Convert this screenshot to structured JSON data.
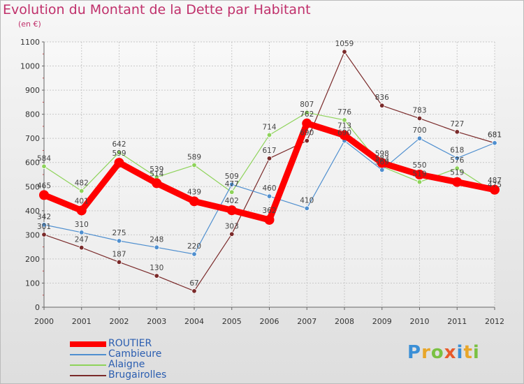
{
  "chart_data": {
    "type": "line",
    "title": "Evolution du Montant de la Dette par Habitant",
    "subtitle": "(en €)",
    "xlabel": "",
    "ylabel": "",
    "ylim": [
      0,
      1100
    ],
    "yticks": [
      0,
      100,
      200,
      300,
      400,
      500,
      600,
      700,
      800,
      900,
      1000,
      1100
    ],
    "x": [
      2000,
      2001,
      2002,
      2003,
      2004,
      2005,
      2006,
      2007,
      2008,
      2009,
      2010,
      2011,
      2012
    ],
    "grid": true,
    "legend_position": "bottom-left",
    "series": [
      {
        "name": "Brugairolles",
        "color": "#7a2a2a",
        "values": [
          301,
          247,
          187,
          130,
          67,
          303,
          617,
          690,
          1059,
          836,
          783,
          727,
          681
        ]
      },
      {
        "name": "Alaigne",
        "color": "#8ed35a",
        "values": [
          584,
          482,
          642,
          539,
          589,
          477,
          714,
          807,
          776,
          583,
          519,
          576,
          475
        ]
      },
      {
        "name": "Cambieure",
        "color": "#4f8fcf",
        "values": [
          342,
          310,
          275,
          248,
          220,
          509,
          460,
          410,
          690,
          569,
          700,
          618,
          681
        ]
      },
      {
        "name": "ROUTIER",
        "color": "#ff0000",
        "values": [
          465,
          401,
          599,
          514,
          439,
          402,
          362,
          762,
          713,
          598,
          550,
          519,
          487
        ]
      }
    ],
    "legend_order": [
      "ROUTIER",
      "Cambieure",
      "Alaigne",
      "Brugairolles"
    ]
  },
  "logo": {
    "letters": [
      "P",
      "r",
      "o",
      "x",
      "i",
      "t",
      "i"
    ]
  }
}
